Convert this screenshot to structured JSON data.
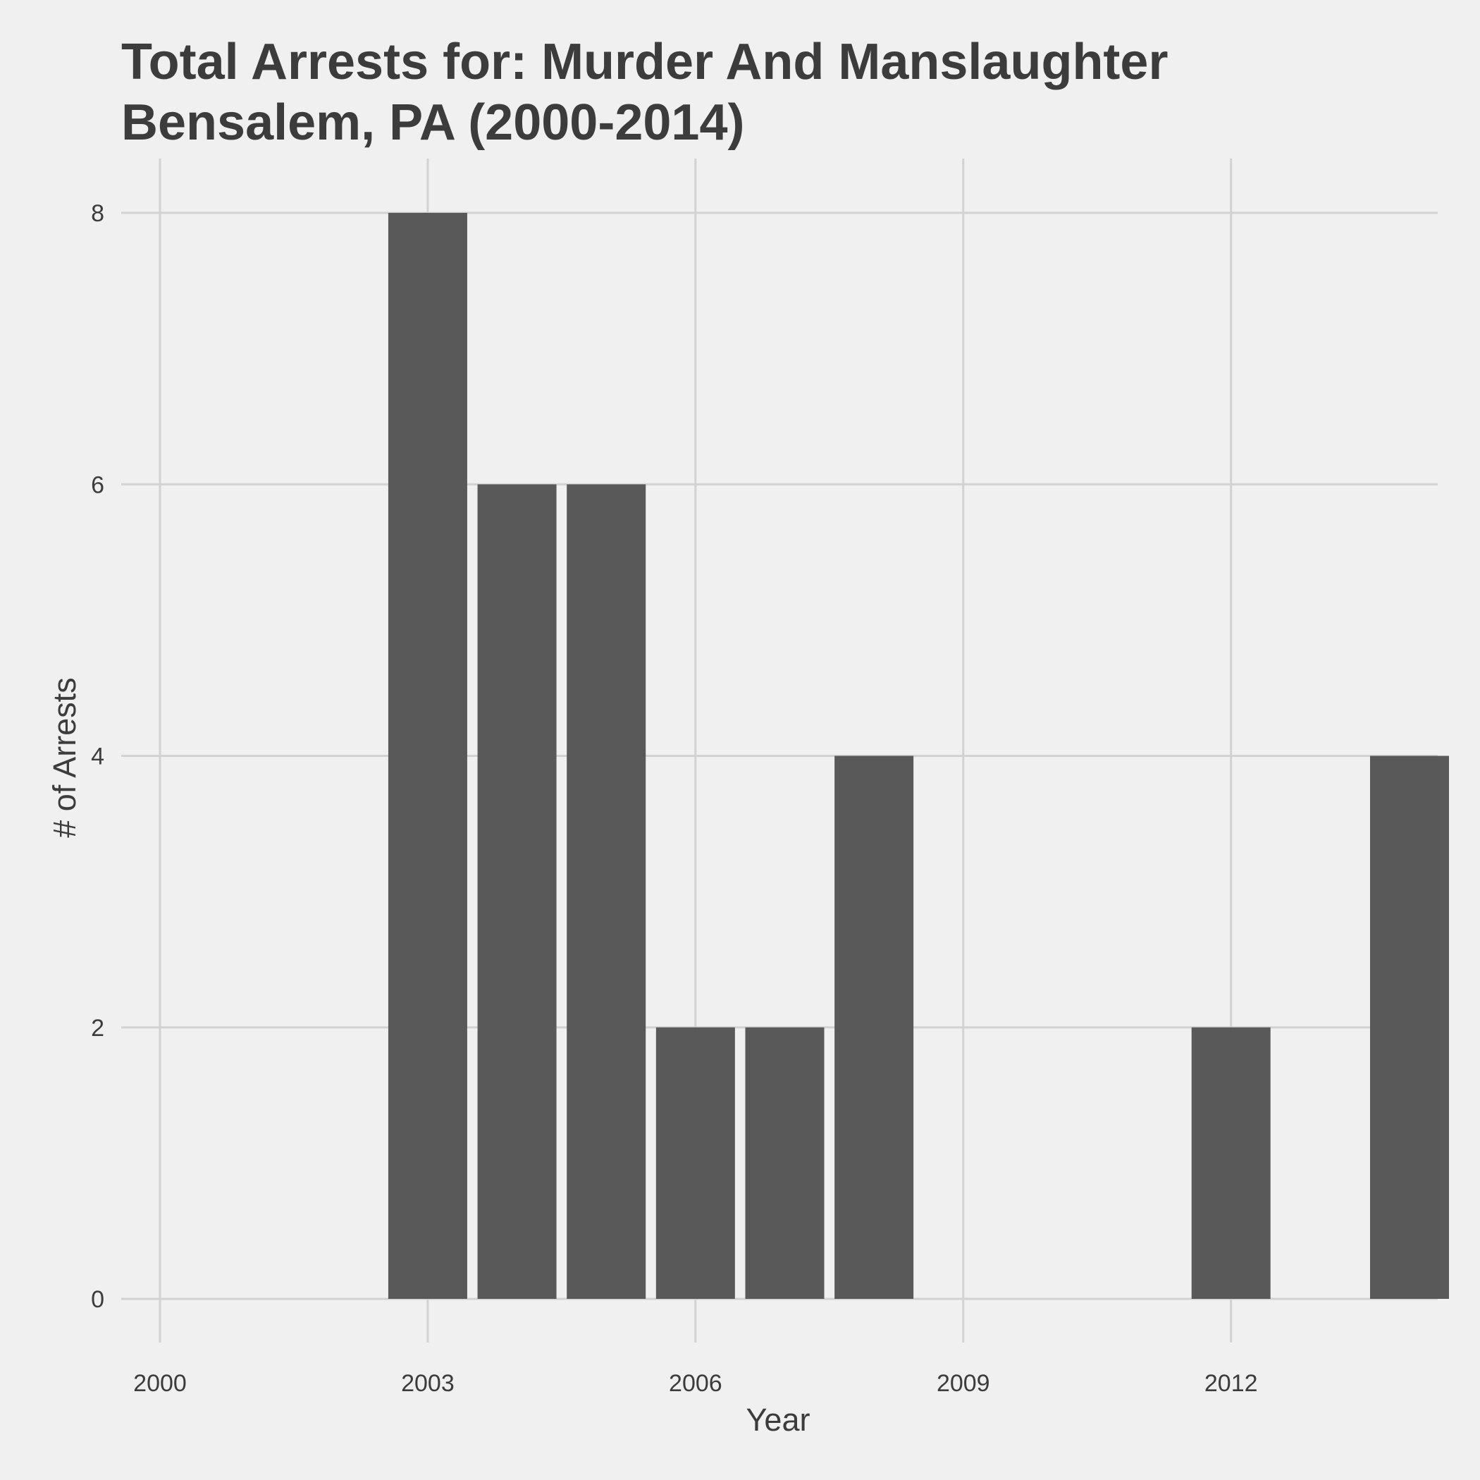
{
  "chart_data": {
    "type": "bar",
    "title": [
      "Total Arrests for: Murder And Manslaughter",
      "Bensalem, PA (2000-2014)"
    ],
    "xlabel": "Year",
    "ylabel": "# of Arrests",
    "x": [
      2000,
      2001,
      2002,
      2003,
      2004,
      2005,
      2006,
      2007,
      2008,
      2009,
      2010,
      2011,
      2012,
      2013,
      2014
    ],
    "values": [
      0,
      0,
      0,
      8,
      6,
      6,
      2,
      2,
      4,
      0,
      0,
      0,
      2,
      0,
      4
    ],
    "xticks": [
      2000,
      2003,
      2006,
      2009,
      2012
    ],
    "yticks": [
      0,
      2,
      4,
      6,
      8
    ],
    "xlim": [
      2000,
      2014
    ],
    "ylim": [
      0,
      8
    ],
    "grid": true,
    "legend": "none",
    "colors": {
      "background": "#f0f0f0",
      "bar": "#595959",
      "grid": "#d2d2d2",
      "text": "#3c3c3c"
    }
  }
}
